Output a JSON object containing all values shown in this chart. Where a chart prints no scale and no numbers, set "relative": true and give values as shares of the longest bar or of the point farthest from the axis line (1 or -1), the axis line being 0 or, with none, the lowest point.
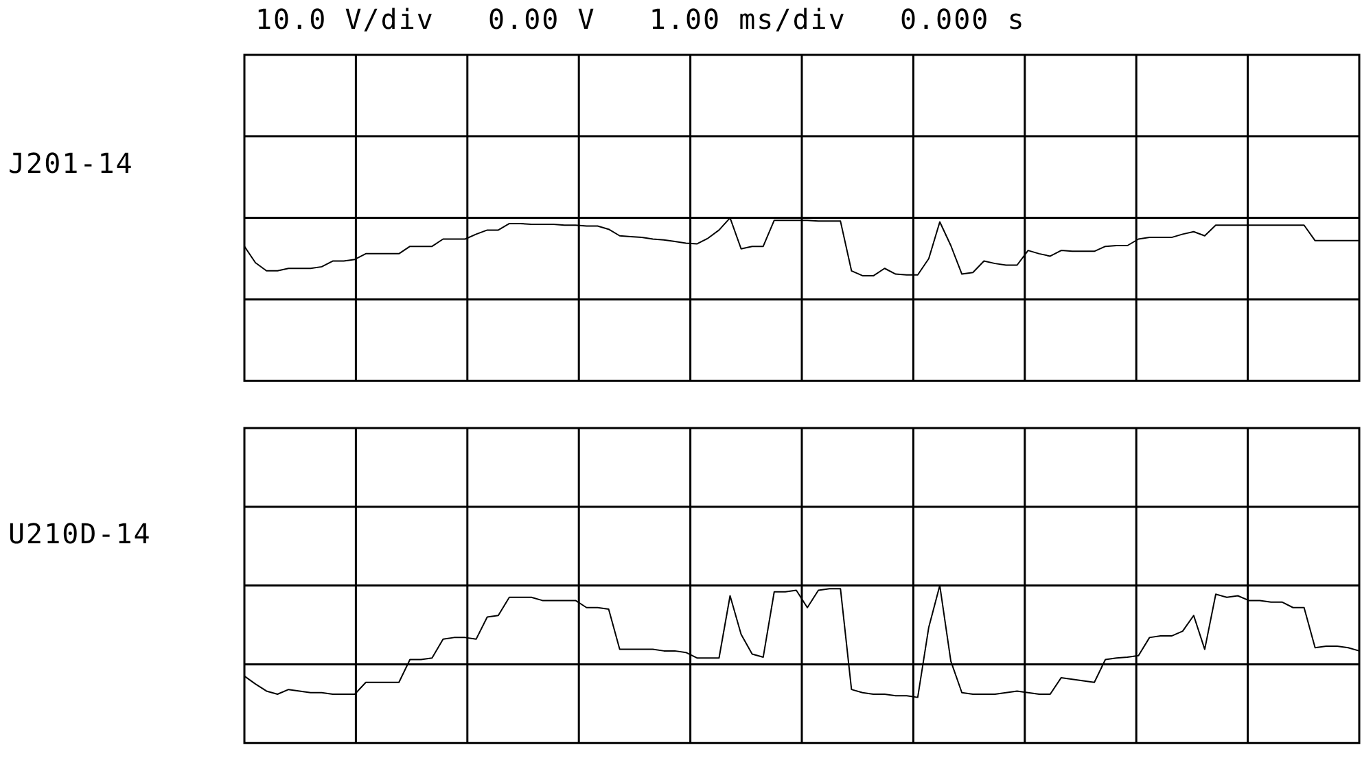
{
  "chart_data": [
    {
      "type": "line",
      "title": "10.0 V/div   0.00 V   1.00 ms/div   0.000 s",
      "ylabel": "J201-14",
      "relative": true,
      "grid": true,
      "legend": false,
      "categories": [
        null,
        null,
        null,
        null,
        null,
        null,
        null,
        null,
        null,
        null,
        null,
        null,
        null,
        null,
        null,
        null,
        null,
        null,
        null,
        null,
        null,
        null,
        null,
        null,
        null,
        null,
        null,
        null,
        null,
        null,
        null,
        null,
        null,
        null,
        null,
        null,
        null,
        null,
        null,
        null,
        null,
        null,
        null,
        null,
        null,
        null,
        null,
        null,
        null,
        null,
        null,
        null,
        null,
        null,
        null,
        null,
        null,
        null,
        null,
        null,
        null,
        null,
        null,
        null,
        null,
        null,
        null,
        null,
        null,
        null,
        null,
        null,
        null,
        null,
        null,
        null,
        null,
        null,
        null,
        null,
        null,
        null,
        null,
        null,
        null,
        null,
        null,
        null,
        null,
        null,
        null,
        null,
        null,
        null,
        null,
        null,
        null,
        null,
        null,
        null,
        null,
        null
      ],
      "series": [
        {
          "color": "#000000",
          "values": [
            0.65,
            0.45,
            0.35,
            0.35,
            0.38,
            0.38,
            0.38,
            0.4,
            0.47,
            0.47,
            0.49,
            0.56,
            0.56,
            0.56,
            0.56,
            0.65,
            0.65,
            0.65,
            0.74,
            0.74,
            0.74,
            0.8,
            0.85,
            0.85,
            0.93,
            0.93,
            0.92,
            0.92,
            0.92,
            0.91,
            0.91,
            0.9,
            0.9,
            0.86,
            0.78,
            0.77,
            0.76,
            0.74,
            0.73,
            0.71,
            0.69,
            0.68,
            0.75,
            0.85,
            1,
            0.62,
            0.65,
            0.65,
            0.97,
            0.97,
            0.97,
            0.97,
            0.96,
            0.96,
            0.96,
            0.35,
            0.29,
            0.29,
            0.38,
            0.31,
            0.3,
            0.3,
            0.5,
            0.95,
            0.66,
            0.31,
            0.33,
            0.47,
            0.44,
            0.42,
            0.42,
            0.6,
            0.56,
            0.53,
            0.6,
            0.59,
            0.59,
            0.59,
            0.65,
            0.66,
            0.66,
            0.74,
            0.76,
            0.76,
            0.76,
            0.8,
            0.83,
            0.78,
            0.91,
            0.91,
            0.91,
            0.91,
            0.91,
            0.91,
            0.91,
            0.91,
            0.91,
            0.72,
            0.72,
            0.72,
            0.72,
            0.72
          ]
        }
      ]
    },
    {
      "type": "line",
      "ylabel": "U210D-14",
      "relative": true,
      "grid": true,
      "legend": false,
      "categories": [
        null,
        null,
        null,
        null,
        null,
        null,
        null,
        null,
        null,
        null,
        null,
        null,
        null,
        null,
        null,
        null,
        null,
        null,
        null,
        null,
        null,
        null,
        null,
        null,
        null,
        null,
        null,
        null,
        null,
        null,
        null,
        null,
        null,
        null,
        null,
        null,
        null,
        null,
        null,
        null,
        null,
        null,
        null,
        null,
        null,
        null,
        null,
        null,
        null,
        null,
        null,
        null,
        null,
        null,
        null,
        null,
        null,
        null,
        null,
        null,
        null,
        null,
        null,
        null,
        null,
        null,
        null,
        null,
        null,
        null,
        null,
        null,
        null,
        null,
        null,
        null,
        null,
        null,
        null,
        null,
        null,
        null,
        null,
        null,
        null,
        null,
        null,
        null,
        null,
        null,
        null,
        null,
        null,
        null,
        null,
        null,
        null,
        null,
        null,
        null,
        null,
        null
      ],
      "series": [
        {
          "color": "#000000",
          "values": [
            -0.15,
            -0.25,
            -0.34,
            -0.38,
            -0.32,
            -0.34,
            -0.36,
            -0.36,
            -0.38,
            -0.38,
            -0.38,
            -0.23,
            -0.23,
            -0.23,
            -0.23,
            0.06,
            0.06,
            0.08,
            0.32,
            0.34,
            0.34,
            0.32,
            0.6,
            0.62,
            0.85,
            0.85,
            0.85,
            0.81,
            0.81,
            0.81,
            0.81,
            0.72,
            0.72,
            0.7,
            0.19,
            0.19,
            0.19,
            0.19,
            0.17,
            0.17,
            0.15,
            0.08,
            0.08,
            0.08,
            0.87,
            0.38,
            0.13,
            0.09,
            0.92,
            0.92,
            0.94,
            0.72,
            0.94,
            0.96,
            0.96,
            -0.32,
            -0.36,
            -0.38,
            -0.38,
            -0.4,
            -0.4,
            -0.42,
            0.47,
            1,
            0.04,
            -0.36,
            -0.38,
            -0.38,
            -0.38,
            -0.36,
            -0.34,
            -0.36,
            -0.38,
            -0.38,
            -0.17,
            -0.19,
            -0.21,
            -0.23,
            0.06,
            0.08,
            0.09,
            0.11,
            0.34,
            0.36,
            0.36,
            0.42,
            0.62,
            0.19,
            0.89,
            0.85,
            0.87,
            0.81,
            0.81,
            0.79,
            0.79,
            0.72,
            0.72,
            0.21,
            0.23,
            0.23,
            0.21,
            0.17
          ]
        }
      ]
    }
  ]
}
